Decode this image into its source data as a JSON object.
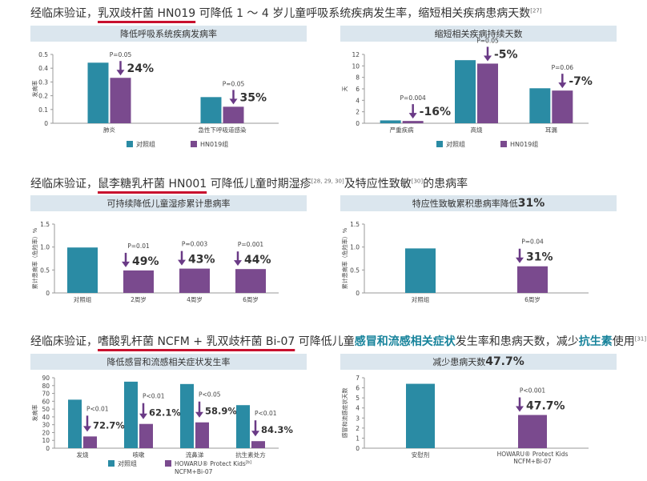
{
  "colors": {
    "control": "#2a8ba4",
    "treatment": "#7a4a8e",
    "arrow": "#6a3a86",
    "header_bg": "#dbe6ee",
    "underline": "#c8102e",
    "teal_text": "#17839b"
  },
  "sections": [
    {
      "pre": "经临床验证，",
      "underlined": "乳双歧杆菌 HN019",
      "post": " 可降低 1 ～ 4 岁儿童呼吸系统疾病发生率，缩短相关疾病患病天数",
      "ref": "[27]"
    },
    {
      "pre": "经临床验证，",
      "underlined": "鼠李糖乳杆菌 HN001",
      "post": " 可降低儿童时期湿疹",
      "ref": "[28, 29, 30]",
      "post2": "及特应性致敏",
      "ref2": "[30]",
      "post3": "的患病率"
    },
    {
      "pre": "经临床验证，",
      "underlined": "嗜酸乳杆菌 NCFM + 乳双歧杆菌 Bi-07",
      "post": " 可降低儿童",
      "hl1": "感冒和流感相关症状",
      "post2": "发生率和患病天数，减少",
      "hl2": "抗生素",
      "post3": "使用",
      "ref": "[31]"
    }
  ],
  "legends": {
    "control": "对照组",
    "hn019": "HN019组",
    "howaru_line1": "HOWARU® Protect Kids",
    "howaru_ref": "[b]",
    "howaru_line2": "NCFM+Bi-07"
  },
  "chart_data": [
    {
      "type": "bar",
      "title": "降低呼吸系统疾病发病率",
      "ylabel": "发病率",
      "ylim": [
        0,
        0.5
      ],
      "yticks": [
        "0",
        "0.1",
        "0.2",
        "0.3",
        "0.4",
        "0.5"
      ],
      "categories": [
        "肺炎",
        "急性下呼吸道感染"
      ],
      "series": [
        {
          "name": "对照组",
          "values": [
            0.44,
            0.19
          ]
        },
        {
          "name": "HN019组",
          "values": [
            0.33,
            0.12
          ]
        }
      ],
      "annotations": [
        {
          "p": "P=0.05",
          "pct": "24%"
        },
        {
          "p": "P=0.05",
          "pct": "35%"
        }
      ]
    },
    {
      "type": "bar",
      "title": "缩短相关疾病持续天数",
      "ylabel": "天",
      "ylim": [
        0,
        12
      ],
      "yticks": [
        "0",
        "2",
        "4",
        "6",
        "8",
        "10",
        "12"
      ],
      "categories": [
        "严重疾病",
        "高烧",
        "耳漏"
      ],
      "series": [
        {
          "name": "对照组",
          "values": [
            0.5,
            11.0,
            6.1
          ]
        },
        {
          "name": "HN019组",
          "values": [
            0.4,
            10.4,
            5.7
          ]
        }
      ],
      "annotations": [
        {
          "p": "P=0.004",
          "pct": "-16%"
        },
        {
          "p": "P=0.05",
          "pct": "-5%"
        },
        {
          "p": "P=0.06",
          "pct": "-7%"
        }
      ]
    },
    {
      "type": "bar",
      "title": "可持续降低儿童湿疹累计患病率",
      "ylabel": "累计患病率（危险率）%",
      "ylim": [
        0,
        1.5
      ],
      "yticks": [
        "0",
        "0.5",
        "1.0",
        "1.5"
      ],
      "categories": [
        "对照组",
        "2周岁",
        "4周岁",
        "6周岁"
      ],
      "values": [
        0.99,
        0.49,
        0.53,
        0.52
      ],
      "annotations": [
        null,
        {
          "p": "P=0.01",
          "pct": "49%"
        },
        {
          "p": "P=0.003",
          "pct": "43%"
        },
        {
          "p": "P=0.001",
          "pct": "44%"
        }
      ]
    },
    {
      "type": "bar",
      "title": "特应性致敏累积患病率降低",
      "title_pct": "31%",
      "ylabel": "累计患病率（危险率）%",
      "ylim": [
        0,
        1.5
      ],
      "yticks": [
        "0",
        "0.5",
        "1.0",
        "1.5"
      ],
      "categories": [
        "对照组",
        "6周岁"
      ],
      "values": [
        0.97,
        0.58
      ],
      "annotations": [
        null,
        {
          "p": "P=0.04",
          "pct": "31%"
        }
      ]
    },
    {
      "type": "bar",
      "title": "降低感冒和流感相关症状发生率",
      "ylabel": "发病率",
      "ylim": [
        0,
        90
      ],
      "yticks": [
        "0",
        "10",
        "20",
        "30",
        "40",
        "50",
        "60",
        "70",
        "80",
        "90"
      ],
      "categories": [
        "发烧",
        "咳嗽",
        "流鼻涕",
        "抗生素处方"
      ],
      "series": [
        {
          "name": "对照组",
          "values": [
            62,
            85,
            82,
            55
          ]
        },
        {
          "name": "HOWARU® Protect Kids NCFM+Bi-07",
          "values": [
            15,
            31,
            33,
            9
          ]
        }
      ],
      "annotations": [
        {
          "p": "P<0.01",
          "pct": "72.7%"
        },
        {
          "p": "P<0.01",
          "pct": "62.1%"
        },
        {
          "p": "P<0.05",
          "pct": "58.9%"
        },
        {
          "p": "P<0.01",
          "pct": "84.3%"
        }
      ]
    },
    {
      "type": "bar",
      "title": "减少患病天数",
      "title_pct": "47.7%",
      "ylabel": "感冒和流感症状天数",
      "ylim": [
        0,
        7
      ],
      "yticks": [
        "0",
        "1",
        "2",
        "3",
        "4",
        "5",
        "6",
        "7"
      ],
      "categories": [
        "安慰剂",
        "HOWARU® Protect Kids NCFM+Bi-07"
      ],
      "values": [
        6.4,
        3.3
      ],
      "annotations": [
        null,
        {
          "p": "P<0.001",
          "pct": "47.7%"
        }
      ]
    }
  ]
}
